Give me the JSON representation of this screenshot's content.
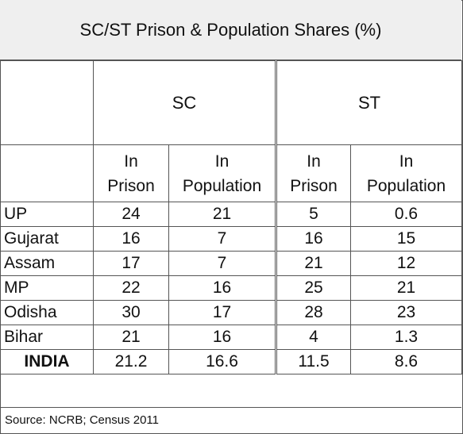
{
  "title": "SC/ST Prison & Population Shares (%)",
  "groups": {
    "sc": "SC",
    "st": "ST"
  },
  "subheaders": {
    "sc_prison_l1": "In",
    "sc_prison_l2": "Prison",
    "sc_pop_l1": "In",
    "sc_pop_l2": "Population",
    "st_prison_l1": "In",
    "st_prison_l2": "Prison",
    "st_pop_l1": "In",
    "st_pop_l2": "Population"
  },
  "rows": [
    {
      "state": "UP",
      "sc_prison": "24",
      "sc_pop": "21",
      "st_prison": "5",
      "st_pop": "0.6"
    },
    {
      "state": "Gujarat",
      "sc_prison": "16",
      "sc_pop": "7",
      "st_prison": "16",
      "st_pop": "15"
    },
    {
      "state": "Assam",
      "sc_prison": "17",
      "sc_pop": "7",
      "st_prison": "21",
      "st_pop": "12"
    },
    {
      "state": "MP",
      "sc_prison": "22",
      "sc_pop": "16",
      "st_prison": "25",
      "st_pop": "21"
    },
    {
      "state": "Odisha",
      "sc_prison": "30",
      "sc_pop": "17",
      "st_prison": "28",
      "st_pop": "23"
    },
    {
      "state": "Bihar",
      "sc_prison": "21",
      "sc_pop": "16",
      "st_prison": "4",
      "st_pop": "1.3"
    },
    {
      "state": "INDIA",
      "sc_prison": "21.2",
      "sc_pop": "16.6",
      "st_prison": "11.5",
      "st_pop": "8.6"
    }
  ],
  "source": "Source: NCRB; Census 2011"
}
